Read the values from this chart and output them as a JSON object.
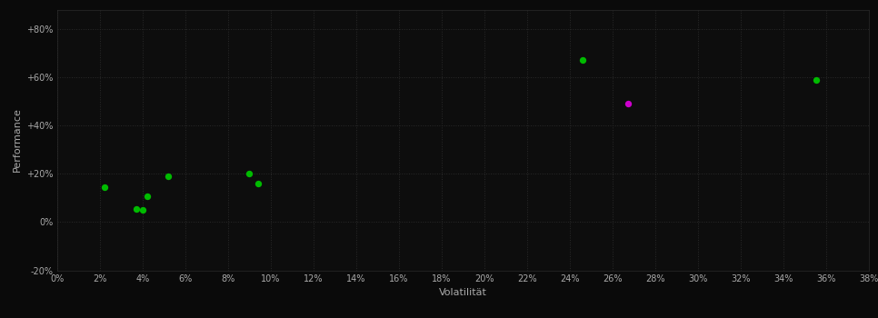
{
  "background_color": "#0a0a0a",
  "plot_bg_color": "#0d0d0d",
  "grid_color": "#2a2a2a",
  "text_color": "#aaaaaa",
  "xlabel": "Volatilität",
  "ylabel": "Performance",
  "xlim": [
    0,
    0.38
  ],
  "ylim": [
    -0.2,
    0.88
  ],
  "xticks": [
    0.0,
    0.02,
    0.04,
    0.06,
    0.08,
    0.1,
    0.12,
    0.14,
    0.16,
    0.18,
    0.2,
    0.22,
    0.24,
    0.26,
    0.28,
    0.3,
    0.32,
    0.34,
    0.36,
    0.38
  ],
  "yticks": [
    -0.2,
    0.0,
    0.2,
    0.4,
    0.6,
    0.8
  ],
  "ytick_labels": [
    "-20%",
    "0%",
    "+20%",
    "+40%",
    "+60%",
    "+80%"
  ],
  "xtick_labels": [
    "0%",
    "2%",
    "4%",
    "6%",
    "8%",
    "10%",
    "12%",
    "14%",
    "16%",
    "18%",
    "20%",
    "22%",
    "24%",
    "26%",
    "28%",
    "30%",
    "32%",
    "34%",
    "36%",
    "38%"
  ],
  "green_points": [
    [
      0.022,
      0.145
    ],
    [
      0.037,
      0.055
    ],
    [
      0.04,
      0.05
    ],
    [
      0.042,
      0.105
    ],
    [
      0.052,
      0.19
    ],
    [
      0.09,
      0.2
    ],
    [
      0.094,
      0.16
    ],
    [
      0.246,
      0.67
    ],
    [
      0.355,
      0.59
    ]
  ],
  "magenta_points": [
    [
      0.267,
      0.49
    ]
  ],
  "green_color": "#00bb00",
  "magenta_color": "#cc00cc",
  "marker_size": 28
}
